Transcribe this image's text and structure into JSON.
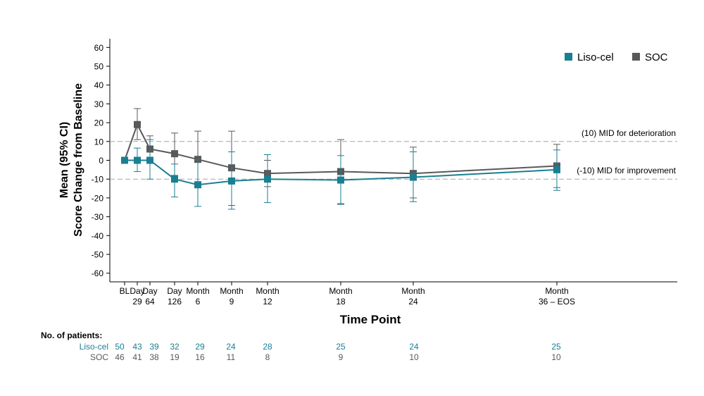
{
  "chart_data": {
    "type": "line",
    "ylabel_line1": "Mean (95% CI)",
    "ylabel_line2": "Score Change from Baseline",
    "xlabel": "Time Point",
    "ylim": [
      -65,
      65
    ],
    "yticks": [
      60,
      50,
      40,
      30,
      20,
      10,
      0,
      -10,
      -20,
      -30,
      -40,
      -50,
      -60
    ],
    "grid": false,
    "legend_position": "top-right",
    "x_ticks": [
      {
        "label_top": "BL",
        "label_bottom": "",
        "day": 0
      },
      {
        "label_top": "Day",
        "label_bottom": "29",
        "day": 29
      },
      {
        "label_top": "Day",
        "label_bottom": "64",
        "day": 64
      },
      {
        "label_top": "Day",
        "label_bottom": "126",
        "day": 126
      },
      {
        "label_top": "Month",
        "label_bottom": "6",
        "day": 182
      },
      {
        "label_top": "Month",
        "label_bottom": "9",
        "day": 274
      },
      {
        "label_top": "Month",
        "label_bottom": "12",
        "day": 365
      },
      {
        "label_top": "Month",
        "label_bottom": "18",
        "day": 548
      },
      {
        "label_top": "Month",
        "label_bottom": "24",
        "day": 730
      },
      {
        "label_top": "Month",
        "label_bottom": "36 – EOS",
        "day": 1095
      }
    ],
    "series": [
      {
        "name": "Liso-cel",
        "color": "#1a7f92",
        "values": [
          0,
          0,
          0,
          -10,
          -13,
          -11,
          -10,
          -10.5,
          -9,
          -5
        ],
        "ci_low": [
          0,
          -6,
          -10,
          -19.5,
          -24.5,
          -26,
          -22.5,
          -23.5,
          -22,
          -16
        ],
        "ci_high": [
          0,
          6.5,
          11,
          -2,
          0.5,
          4.5,
          3,
          2.5,
          4.5,
          5.5
        ]
      },
      {
        "name": "SOC",
        "color": "#595959",
        "values": [
          0,
          19,
          6,
          3.5,
          0.5,
          -4,
          -7,
          -6,
          -7,
          -3
        ],
        "ci_low": [
          0,
          11,
          0,
          -8,
          -14,
          -24,
          -14,
          -23,
          -20,
          -14.5
        ],
        "ci_high": [
          0,
          27.5,
          13,
          14.5,
          15.5,
          15.5,
          0,
          11,
          7,
          8.5
        ]
      }
    ],
    "reference_lines": [
      {
        "y": 10,
        "label": "(10) MID for deterioration"
      },
      {
        "y": -10,
        "label": "(-10) MID for improvement"
      }
    ],
    "patients": {
      "header": "No. of patients:",
      "rows": [
        {
          "name": "Liso-cel",
          "color": "#1a7f92",
          "counts": [
            "50",
            "43",
            "39",
            "32",
            "29",
            "24",
            "28",
            "25",
            "24",
            "25"
          ]
        },
        {
          "name": "SOC",
          "color": "#595959",
          "counts": [
            "46",
            "41",
            "38",
            "19",
            "16",
            "11",
            "8",
            "9",
            "10",
            "10"
          ]
        }
      ]
    }
  }
}
